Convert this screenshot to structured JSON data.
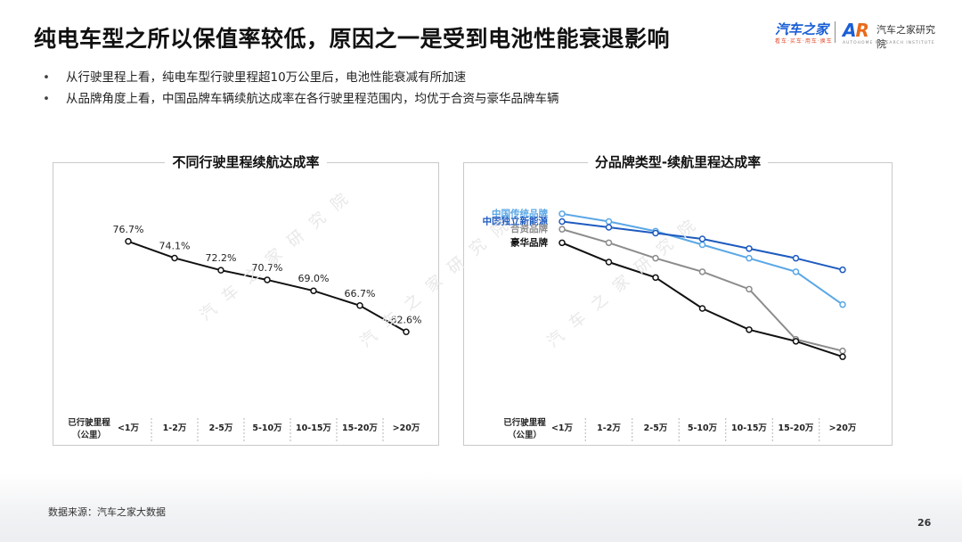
{
  "title": "纯电车型之所以保值率较低，原因之一是受到电池性能衰退影响",
  "logo": {
    "main": "汽车之家",
    "sub": "看车·买车·用车·换车",
    "ar_a": "A",
    "ar_r": "R",
    "institute": "汽车之家研究院",
    "institute_en": "AUTOHOME RESEARCH INSTITUTE"
  },
  "bullets": [
    "从行驶里程上看，纯电车型行驶里程超10万公里后，电池性能衰减有所加速",
    "从品牌角度上看，中国品牌车辆续航达成率在各行驶里程范围内，均优于合资与豪华品牌车辆"
  ],
  "source": "数据来源：汽车之家大数据",
  "page_number": "26",
  "watermark": "汽车之家研究院",
  "chart_data": [
    {
      "type": "line",
      "title": "不同行驶里程续航达成率",
      "xlabel": "已行驶里程\n（公里）",
      "categories": [
        "<1万",
        "1-2万",
        "2-5万",
        "5-10万",
        "10-15万",
        "15-20万",
        ">20万"
      ],
      "series": [
        {
          "values": [
            76.7,
            74.1,
            72.2,
            70.7,
            69.0,
            66.7,
            62.6
          ],
          "color": "#111111"
        }
      ],
      "data_labels": [
        "76.7%",
        "74.1%",
        "72.2%",
        "70.7%",
        "69.0%",
        "66.7%",
        "62.6%"
      ],
      "ylim": [
        50,
        85
      ],
      "grid": false
    },
    {
      "type": "line",
      "title": "分品牌类型-续航里程达成率",
      "xlabel": "已行驶里程\n（公里）",
      "categories": [
        "<1万",
        "1-2万",
        "2-5万",
        "5-10万",
        "10-15万",
        "15-20万",
        ">20万"
      ],
      "series": [
        {
          "name": "中国传统品牌",
          "color": "#5aa7e6",
          "values": [
            81.5,
            79.5,
            77.0,
            73.5,
            70.0,
            66.5,
            58.0
          ]
        },
        {
          "name": "中国独立新能源",
          "color": "#1e5bbf",
          "values": [
            79.5,
            78.0,
            76.5,
            75.0,
            72.5,
            70.0,
            67.0
          ]
        },
        {
          "name": "合资品牌",
          "color": "#8c8c8c",
          "values": [
            77.5,
            74.0,
            70.0,
            66.5,
            62.0,
            49.0,
            46.0
          ]
        },
        {
          "name": "豪华品牌",
          "color": "#111111",
          "values": [
            74.0,
            69.0,
            65.0,
            57.0,
            51.5,
            48.5,
            44.5
          ]
        }
      ],
      "ylim": [
        30,
        90
      ],
      "grid": false,
      "legend": "left"
    }
  ]
}
